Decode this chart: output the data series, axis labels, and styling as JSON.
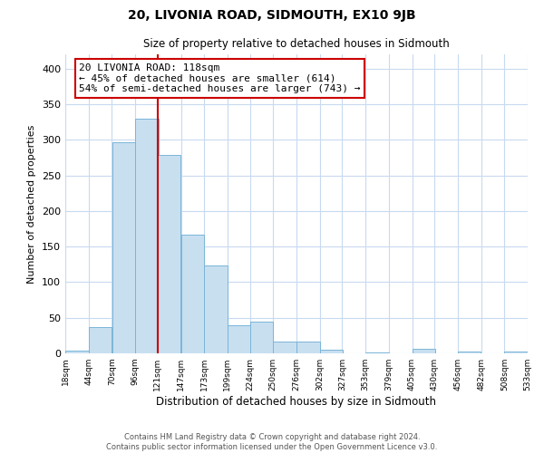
{
  "title": "20, LIVONIA ROAD, SIDMOUTH, EX10 9JB",
  "subtitle": "Size of property relative to detached houses in Sidmouth",
  "xlabel": "Distribution of detached houses by size in Sidmouth",
  "ylabel": "Number of detached properties",
  "bar_left_edges": [
    18,
    44,
    70,
    96,
    121,
    147,
    173,
    199,
    224,
    250,
    276,
    302,
    327,
    353,
    379,
    405,
    430,
    456,
    482,
    508
  ],
  "bar_heights": [
    4,
    37,
    297,
    329,
    279,
    167,
    124,
    40,
    44,
    16,
    17,
    5,
    0,
    1,
    0,
    6,
    0,
    2,
    0,
    2
  ],
  "bin_width": 26,
  "property_line_x": 121,
  "bar_color": "#c8dff0",
  "bar_edge_color": "#7ab5d8",
  "property_line_color": "#cc0000",
  "annotation_text": "20 LIVONIA ROAD: 118sqm\n← 45% of detached houses are smaller (614)\n54% of semi-detached houses are larger (743) →",
  "annotation_box_color": "#ffffff",
  "annotation_box_edge": "#cc0000",
  "ylim": [
    0,
    420
  ],
  "yticks": [
    0,
    50,
    100,
    150,
    200,
    250,
    300,
    350,
    400
  ],
  "tick_labels": [
    "18sqm",
    "44sqm",
    "70sqm",
    "96sqm",
    "121sqm",
    "147sqm",
    "173sqm",
    "199sqm",
    "224sqm",
    "250sqm",
    "276sqm",
    "302sqm",
    "327sqm",
    "353sqm",
    "379sqm",
    "405sqm",
    "430sqm",
    "456sqm",
    "482sqm",
    "508sqm",
    "533sqm"
  ],
  "footer_line1": "Contains HM Land Registry data © Crown copyright and database right 2024.",
  "footer_line2": "Contains public sector information licensed under the Open Government Licence v3.0.",
  "background_color": "#ffffff",
  "grid_color": "#c8daf0"
}
